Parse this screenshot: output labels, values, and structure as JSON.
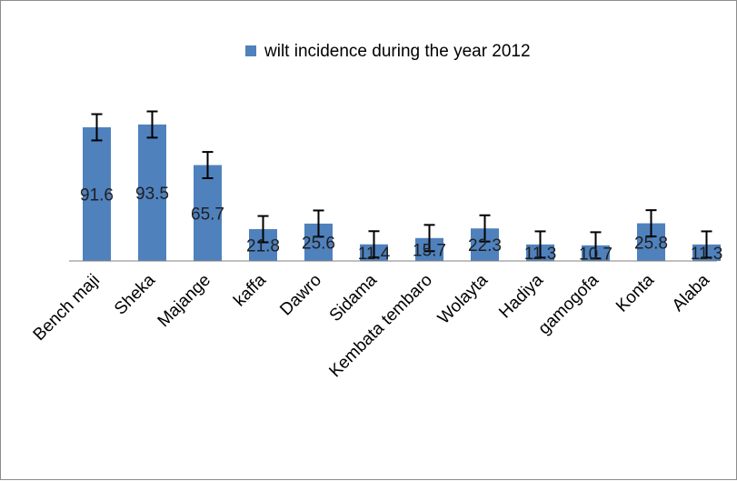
{
  "chart_data": {
    "type": "bar",
    "title": "",
    "xlabel": "",
    "ylabel": "",
    "categories": [
      "Bench maji",
      "Sheka",
      "Majange",
      "kaffa",
      "Dawro",
      "Sidama",
      "Kembata tembaro",
      "Wolayta",
      "Hadiya",
      "gamogofa",
      "Konta",
      "Alaba"
    ],
    "series": [
      {
        "name": "wilt incidence during the year 2012",
        "values": [
          91.6,
          93.5,
          65.7,
          21.8,
          25.6,
          11.4,
          15.7,
          22.3,
          11.3,
          10.7,
          25.8,
          11.3
        ],
        "data_labels": [
          "91.6",
          "93.5",
          "65.7",
          "21.8",
          "25.6",
          "11.4",
          "15.7",
          "22.3",
          "11.3",
          "10.7",
          "25.8",
          "11.3"
        ],
        "error_bars": [
          9,
          9,
          9,
          9,
          9,
          9,
          9,
          9,
          9,
          9,
          9,
          9
        ],
        "color": "#4f81bd"
      }
    ],
    "ylim": [
      0,
      110
    ],
    "grid": false,
    "legend_position": "top"
  }
}
